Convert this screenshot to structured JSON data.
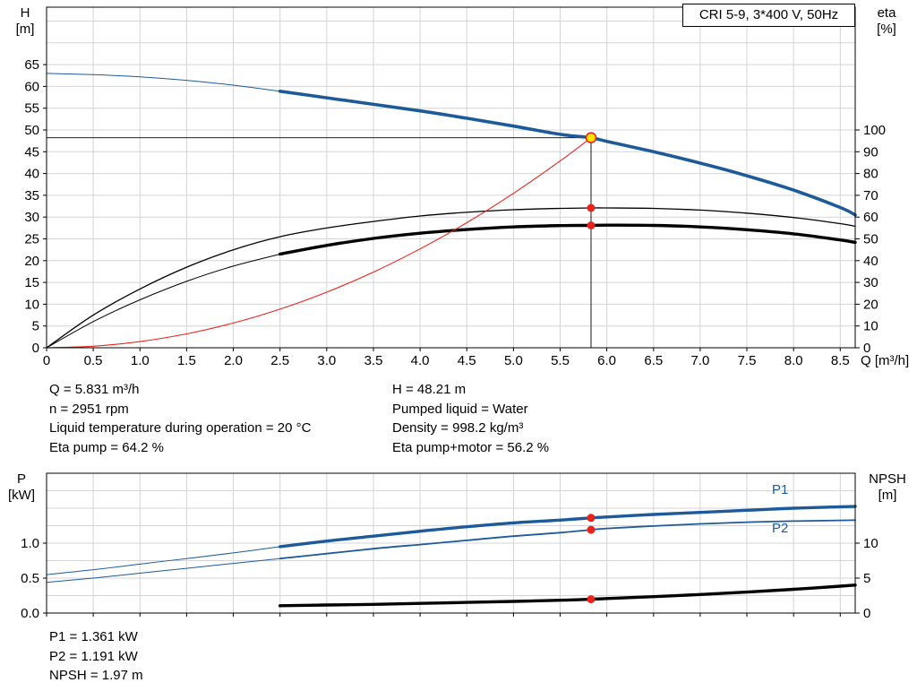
{
  "title_box": {
    "label": "CRI 5-9, 3*400 V, 50Hz"
  },
  "colors": {
    "blue": "#1d5a99",
    "red": "#e8231c",
    "yellow": "#ffe400",
    "black": "#000000",
    "grid": "#d4d4d4"
  },
  "axis_corner_labels": {
    "top_left": {
      "line1": "H",
      "line2": "[m]"
    },
    "top_right": {
      "line1": "eta",
      "line2": "[%]"
    },
    "bottom_left": {
      "line1": "P",
      "line2": "[kW]"
    },
    "bottom_right": {
      "line1": "NPSH",
      "line2": "[m]"
    }
  },
  "series_labels": {
    "p1": "P1",
    "p2": "P2"
  },
  "operating_point_info": {
    "left": [
      "Q = 5.831 m³/h",
      "n = 2951 rpm",
      "Liquid temperature during operation = 20 °C",
      "Eta pump = 64.2 %"
    ],
    "right": [
      "H = 48.21 m",
      "Pumped liquid = Water",
      "Density = 998.2 kg/m³",
      "Eta pump+motor = 56.2 %"
    ]
  },
  "power_info": [
    "P1 = 1.361 kW",
    "P2 = 1.191 kW",
    "NPSH = 1.97 m"
  ],
  "chart_data": [
    {
      "type": "line",
      "name": "qh-efficiency-chart",
      "title": "CRI 5-9, 3*400 V, 50Hz",
      "x_axis": {
        "label": "Q [m³/h]",
        "min": 0,
        "max": 8.66,
        "tick_values": [
          0,
          0.5,
          1,
          1.5,
          2,
          2.5,
          3,
          3.5,
          4,
          4.5,
          5,
          5.5,
          6,
          6.5,
          7,
          7.5,
          8,
          8.5
        ],
        "tick_labels": [
          "0",
          "0.5",
          "1.0",
          "1.5",
          "2.0",
          "2.5",
          "3.0",
          "3.5",
          "4.0",
          "4.5",
          "5.0",
          "5.5",
          "6.0",
          "6.5",
          "7.0",
          "7.5",
          "8.0",
          "8.5"
        ],
        "show_labels": true
      },
      "left_axis": {
        "label": "H [m]",
        "min": 0,
        "max": 78.2,
        "grid_step": 5,
        "tick_values": [
          0,
          5,
          10,
          15,
          20,
          25,
          30,
          35,
          40,
          45,
          50,
          55,
          60,
          65
        ],
        "tick_labels": [
          "0",
          "5",
          "10",
          "15",
          "20",
          "25",
          "30",
          "35",
          "40",
          "45",
          "50",
          "55",
          "60",
          "65"
        ]
      },
      "right_axis": {
        "label": "eta [%]",
        "min": 0,
        "max": 156.4,
        "tick_values": [
          0,
          10,
          20,
          30,
          40,
          50,
          60,
          70,
          80,
          90,
          100
        ],
        "tick_labels": [
          "0",
          "10",
          "20",
          "30",
          "40",
          "50",
          "60",
          "70",
          "80",
          "90",
          "100"
        ]
      },
      "crosshair": {
        "x": 5.831,
        "y": 48.21
      },
      "series": [
        {
          "name": "head-curve",
          "legend": "H",
          "color": "blue",
          "axis": "left",
          "width": 3.6,
          "thin_until": 2.5,
          "thin_width": 1,
          "x": [
            0,
            0.5,
            1,
            1.5,
            2,
            2.5,
            3,
            3.5,
            4,
            4.5,
            5,
            5.5,
            5.831,
            6,
            6.5,
            7,
            7.5,
            8,
            8.5,
            8.66
          ],
          "y": [
            63,
            62.7,
            62.2,
            61.4,
            60.3,
            58.9,
            57.4,
            55.9,
            54.4,
            52.7,
            50.9,
            49,
            48.21,
            47.4,
            45,
            42.4,
            39.5,
            36.2,
            32.2,
            30.5
          ]
        },
        {
          "name": "eta-pump-curve",
          "legend": "Eta pump",
          "color": "black",
          "axis": "right",
          "width": 1.3,
          "x": [
            0,
            0.5,
            1,
            1.5,
            2,
            2.5,
            3,
            3.5,
            4,
            4.5,
            5,
            5.5,
            5.831,
            6,
            6.5,
            7,
            7.5,
            8,
            8.5,
            8.66
          ],
          "y": [
            0,
            15,
            27,
            37,
            45,
            51,
            55,
            58,
            60.5,
            62.2,
            63.4,
            64,
            64.2,
            64.2,
            64,
            63.2,
            61.8,
            59.8,
            57,
            55.8
          ]
        },
        {
          "name": "eta-pump-motor-curve",
          "legend": "Eta pump+motor",
          "color": "black",
          "axis": "right",
          "width": 3.4,
          "thin_until": 2.5,
          "thin_width": 1,
          "x": [
            0,
            0.5,
            1,
            1.5,
            2,
            2.5,
            3,
            3.5,
            4,
            4.5,
            5,
            5.5,
            5.831,
            6,
            6.5,
            7,
            7.5,
            8,
            8.5,
            8.66
          ],
          "y": [
            0,
            12,
            22,
            30.5,
            37.5,
            43,
            47,
            50.2,
            52.6,
            54.3,
            55.5,
            56.1,
            56.2,
            56.3,
            56.2,
            55.5,
            54.2,
            52.3,
            49.5,
            48.4
          ]
        },
        {
          "name": "system-curve",
          "legend": "System curve",
          "color": "red",
          "axis": "left",
          "width": 1.1,
          "x": [
            0,
            0.5,
            1,
            1.5,
            2,
            2.5,
            3,
            3.5,
            4,
            4.5,
            5,
            5.5,
            5.831
          ],
          "y": [
            0,
            0.35,
            1.42,
            3.19,
            5.67,
            8.86,
            12.76,
            17.37,
            22.69,
            28.71,
            35.45,
            42.89,
            48.21
          ]
        }
      ],
      "markers": [
        {
          "name": "duty-point-head",
          "x": 5.831,
          "v": 48.21,
          "axis": "left",
          "r": 5.5,
          "fill": "yellow",
          "stroke": "red"
        },
        {
          "name": "duty-point-eta-pump",
          "x": 5.831,
          "v": 64.2,
          "axis": "right",
          "r": 4.5,
          "fill": "red"
        },
        {
          "name": "duty-point-eta-pump-motor",
          "x": 5.831,
          "v": 56.2,
          "axis": "right",
          "r": 4.5,
          "fill": "red"
        }
      ]
    },
    {
      "type": "line",
      "name": "power-npsh-chart",
      "x_axis": {
        "label": "",
        "min": 0,
        "max": 8.66,
        "tick_values": [
          0,
          0.5,
          1,
          1.5,
          2,
          2.5,
          3,
          3.5,
          4,
          4.5,
          5,
          5.5,
          6,
          6.5,
          7,
          7.5,
          8,
          8.5
        ],
        "tick_labels": [],
        "show_labels": false
      },
      "left_axis": {
        "label": "P [kW]",
        "min": 0,
        "max": 2,
        "grid_step": 0.25,
        "tick_values": [
          0,
          0.5,
          1
        ],
        "tick_labels": [
          "0.0",
          "0.5",
          "1.0"
        ]
      },
      "right_axis": {
        "label": "NPSH [m]",
        "min": 0,
        "max": 20,
        "tick_values": [
          0,
          5,
          10
        ],
        "tick_labels": [
          "0",
          "5",
          "10"
        ]
      },
      "series": [
        {
          "name": "p1-curve",
          "legend": "P1",
          "color": "blue",
          "axis": "left",
          "width": 3.4,
          "thin_until": 2.5,
          "thin_width": 1,
          "x": [
            0,
            0.5,
            1,
            1.5,
            2,
            2.5,
            3,
            3.5,
            4,
            4.5,
            5,
            5.5,
            5.831,
            6,
            6.5,
            7,
            7.5,
            8,
            8.5,
            8.66
          ],
          "y": [
            0.55,
            0.62,
            0.7,
            0.78,
            0.86,
            0.95,
            1.03,
            1.1,
            1.17,
            1.235,
            1.29,
            1.33,
            1.361,
            1.375,
            1.41,
            1.44,
            1.47,
            1.5,
            1.52,
            1.525
          ]
        },
        {
          "name": "p2-curve",
          "legend": "P2",
          "color": "blue",
          "axis": "left",
          "width": 1.8,
          "thin_until": 2.5,
          "thin_width": 1,
          "x": [
            0,
            0.5,
            1,
            1.5,
            2,
            2.5,
            3,
            3.5,
            4,
            4.5,
            5,
            5.5,
            5.831,
            6,
            6.5,
            7,
            7.5,
            8,
            8.5,
            8.66
          ],
          "y": [
            0.44,
            0.5,
            0.57,
            0.64,
            0.71,
            0.78,
            0.85,
            0.92,
            0.98,
            1.04,
            1.1,
            1.15,
            1.191,
            1.21,
            1.245,
            1.275,
            1.3,
            1.315,
            1.325,
            1.33
          ]
        },
        {
          "name": "npsh-curve",
          "legend": "NPSH",
          "color": "black",
          "axis": "right",
          "width": 3.4,
          "x": [
            2.5,
            3,
            3.5,
            4,
            4.5,
            5,
            5.5,
            5.831,
            6,
            6.5,
            7,
            7.5,
            8,
            8.5,
            8.66
          ],
          "y": [
            1.05,
            1.15,
            1.25,
            1.38,
            1.52,
            1.67,
            1.83,
            1.97,
            2.08,
            2.35,
            2.65,
            3,
            3.4,
            3.85,
            4
          ]
        }
      ],
      "markers": [
        {
          "name": "duty-point-p1",
          "x": 5.831,
          "v": 1.361,
          "axis": "left",
          "r": 4.5,
          "fill": "red"
        },
        {
          "name": "duty-point-p2",
          "x": 5.831,
          "v": 1.191,
          "axis": "left",
          "r": 4.5,
          "fill": "red"
        },
        {
          "name": "duty-point-npsh",
          "x": 5.831,
          "v": 1.97,
          "axis": "right",
          "r": 4.5,
          "fill": "red"
        }
      ]
    }
  ]
}
